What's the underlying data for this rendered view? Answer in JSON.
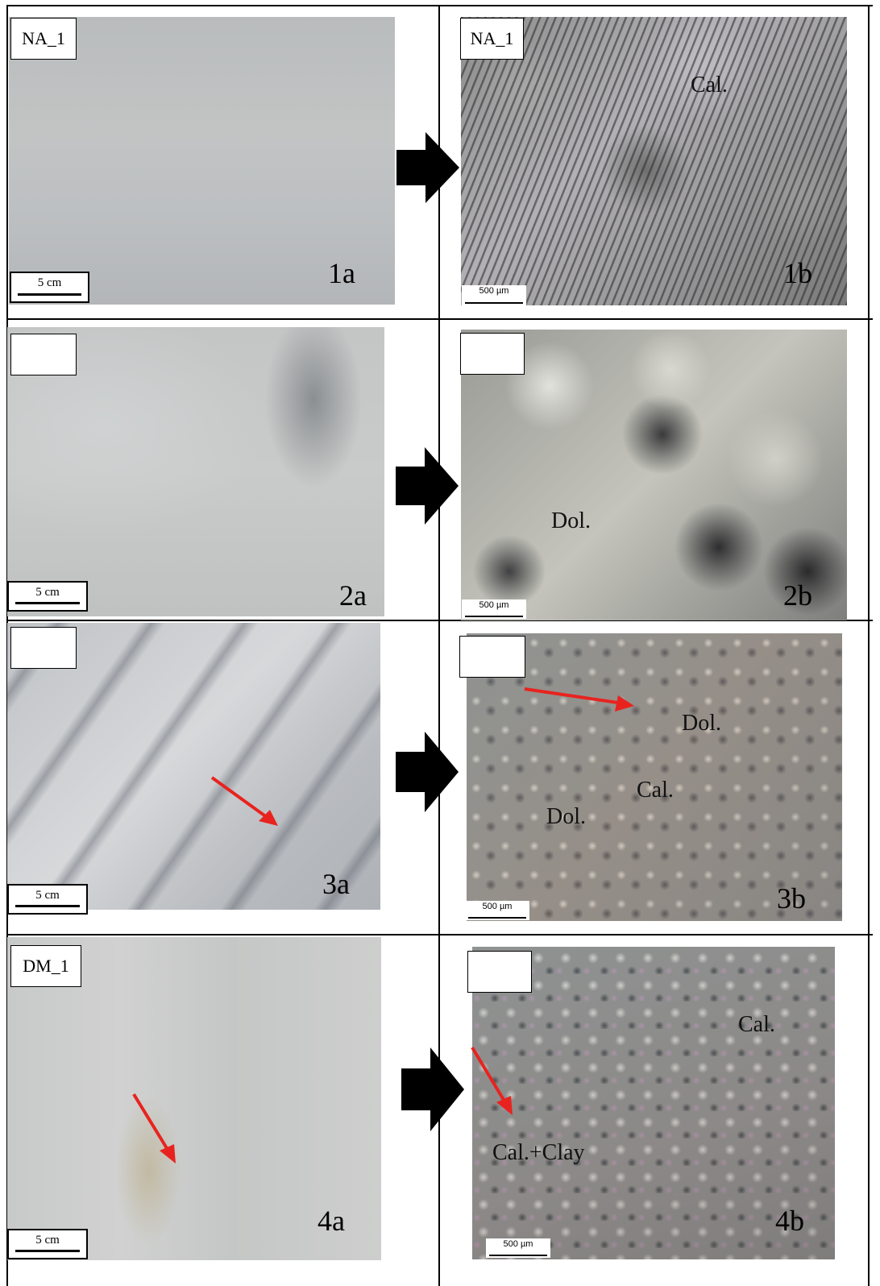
{
  "figure": {
    "rows": [
      {
        "sample_label_left": "NA_1",
        "sample_label_right": "NA_1",
        "scale_left": "5 cm",
        "scale_right": "500 µm",
        "id_left": "1a",
        "id_right": "1b",
        "minerals": [
          "Cal."
        ]
      },
      {
        "sample_label_left": "",
        "sample_label_right": "",
        "scale_left": "5 cm",
        "scale_right": "500 µm",
        "id_left": "2a",
        "id_right": "2b",
        "minerals": [
          "Dol."
        ]
      },
      {
        "sample_label_left": "",
        "sample_label_right": "",
        "scale_left": "5 cm",
        "scale_right": "500 µm",
        "id_left": "3a",
        "id_right": "3b",
        "minerals": [
          "Dol.",
          "Cal.",
          "Dol."
        ]
      },
      {
        "sample_label_left": "DM_1",
        "sample_label_right": "",
        "scale_left": "5 cm",
        "scale_right": "500 µm",
        "id_left": "4a",
        "id_right": "4b",
        "minerals": [
          "Cal.",
          "Cal.+Clay"
        ]
      }
    ],
    "colors": {
      "border": "#000000",
      "arrow_block": "#000000",
      "annotation_arrow": "#e8231f",
      "background": "#ffffff"
    }
  }
}
